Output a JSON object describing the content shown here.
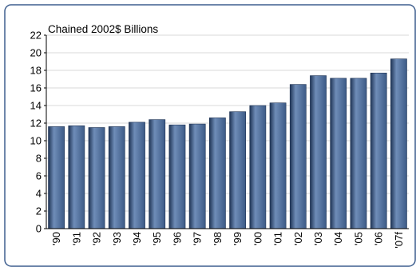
{
  "colors": {
    "border": "#3f5f8f",
    "background": "#ffffff",
    "bar_fill": "#3c5a86",
    "bar_highlight": "#6f8db8",
    "bar_shadow": "#1f3455",
    "grid": "#d9d9d9",
    "axis": "#000000"
  },
  "chart_data": {
    "type": "bar",
    "title": "",
    "ylabel": "Chained 2002$ Billions",
    "xlabel": "",
    "ylim": [
      0,
      22
    ],
    "yticks": [
      0,
      2,
      4,
      6,
      8,
      10,
      12,
      14,
      16,
      18,
      20,
      22
    ],
    "grid": true,
    "legend": "none",
    "categories": [
      "'90",
      "'91",
      "'92",
      "'93",
      "'94",
      "'95",
      "'96",
      "'97",
      "'98",
      "'99",
      "'00",
      "'01",
      "'02",
      "'03",
      "'04",
      "'05",
      "'06",
      "'07f"
    ],
    "values": [
      11.6,
      11.7,
      11.5,
      11.6,
      12.1,
      12.4,
      11.8,
      11.9,
      12.6,
      13.3,
      14.0,
      14.3,
      16.4,
      17.4,
      17.1,
      17.1,
      17.7,
      19.3
    ]
  }
}
